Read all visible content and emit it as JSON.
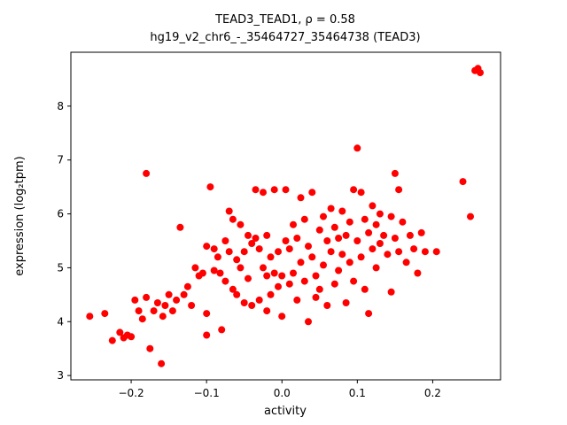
{
  "figure": {
    "background": "#ffffff"
  },
  "chart_data": {
    "type": "scatter",
    "title": "TEAD3_TEAD1, ρ = 0.58",
    "subtitle": "hg19_v2_chr6_-_35464727_35464738 (TEAD3)",
    "correlation_rho": 0.58,
    "xlabel": "activity",
    "ylabel": "expression (log₂tpm)",
    "xlim": [
      -0.28,
      0.29
    ],
    "ylim": [
      2.92,
      9.0
    ],
    "xticks": [
      -0.2,
      -0.1,
      0.0,
      0.1,
      0.2
    ],
    "xtick_labels": [
      "−0.2",
      "−0.1",
      "0.0",
      "0.1",
      "0.2"
    ],
    "yticks": [
      3,
      4,
      5,
      6,
      7,
      8
    ],
    "ytick_labels": [
      "3",
      "4",
      "5",
      "6",
      "7",
      "8"
    ],
    "grid": false,
    "legend": "none",
    "marker_color": "#ff0000",
    "marker_radius_px": 4,
    "points": [
      [
        -0.255,
        4.1
      ],
      [
        -0.235,
        4.15
      ],
      [
        -0.225,
        3.65
      ],
      [
        -0.215,
        3.8
      ],
      [
        -0.21,
        3.7
      ],
      [
        -0.205,
        3.75
      ],
      [
        -0.2,
        3.72
      ],
      [
        -0.195,
        4.4
      ],
      [
        -0.19,
        4.2
      ],
      [
        -0.185,
        4.05
      ],
      [
        -0.18,
        6.75
      ],
      [
        -0.18,
        4.45
      ],
      [
        -0.175,
        3.5
      ],
      [
        -0.17,
        4.2
      ],
      [
        -0.165,
        4.35
      ],
      [
        -0.16,
        3.22
      ],
      [
        -0.158,
        4.1
      ],
      [
        -0.155,
        4.3
      ],
      [
        -0.15,
        4.5
      ],
      [
        -0.145,
        4.2
      ],
      [
        -0.14,
        4.4
      ],
      [
        -0.135,
        5.75
      ],
      [
        -0.13,
        4.5
      ],
      [
        -0.125,
        4.65
      ],
      [
        -0.12,
        4.3
      ],
      [
        -0.115,
        5.0
      ],
      [
        -0.11,
        4.85
      ],
      [
        -0.105,
        4.9
      ],
      [
        -0.1,
        5.4
      ],
      [
        -0.1,
        4.15
      ],
      [
        -0.1,
        3.75
      ],
      [
        -0.095,
        6.5
      ],
      [
        -0.09,
        5.35
      ],
      [
        -0.09,
        4.95
      ],
      [
        -0.085,
        5.2
      ],
      [
        -0.082,
        4.9
      ],
      [
        -0.08,
        3.85
      ],
      [
        -0.075,
        5.5
      ],
      [
        -0.075,
        4.75
      ],
      [
        -0.07,
        6.05
      ],
      [
        -0.07,
        5.3
      ],
      [
        -0.065,
        5.9
      ],
      [
        -0.065,
        4.6
      ],
      [
        -0.06,
        5.15
      ],
      [
        -0.06,
        4.5
      ],
      [
        -0.055,
        5.8
      ],
      [
        -0.055,
        5.0
      ],
      [
        -0.05,
        5.3
      ],
      [
        -0.05,
        4.35
      ],
      [
        -0.045,
        5.6
      ],
      [
        -0.045,
        4.8
      ],
      [
        -0.04,
        5.45
      ],
      [
        -0.04,
        4.3
      ],
      [
        -0.035,
        6.45
      ],
      [
        -0.035,
        5.55
      ],
      [
        -0.03,
        5.35
      ],
      [
        -0.03,
        4.4
      ],
      [
        -0.025,
        6.4
      ],
      [
        -0.025,
        5.0
      ],
      [
        -0.02,
        5.6
      ],
      [
        -0.02,
        4.85
      ],
      [
        -0.02,
        4.2
      ],
      [
        -0.015,
        5.2
      ],
      [
        -0.015,
        4.5
      ],
      [
        -0.01,
        6.45
      ],
      [
        -0.01,
        4.9
      ],
      [
        -0.005,
        5.3
      ],
      [
        -0.005,
        4.65
      ],
      [
        0.0,
        4.85
      ],
      [
        0.0,
        4.1
      ],
      [
        0.005,
        6.45
      ],
      [
        0.005,
        5.5
      ],
      [
        0.01,
        5.35
      ],
      [
        0.01,
        4.7
      ],
      [
        0.015,
        5.8
      ],
      [
        0.015,
        4.9
      ],
      [
        0.02,
        5.55
      ],
      [
        0.02,
        4.4
      ],
      [
        0.025,
        6.3
      ],
      [
        0.025,
        5.1
      ],
      [
        0.03,
        5.9
      ],
      [
        0.03,
        4.75
      ],
      [
        0.035,
        5.4
      ],
      [
        0.035,
        4.0
      ],
      [
        0.04,
        6.4
      ],
      [
        0.04,
        5.2
      ],
      [
        0.045,
        4.85
      ],
      [
        0.045,
        4.45
      ],
      [
        0.05,
        5.7
      ],
      [
        0.05,
        4.6
      ],
      [
        0.055,
        5.95
      ],
      [
        0.055,
        5.05
      ],
      [
        0.06,
        5.5
      ],
      [
        0.06,
        4.3
      ],
      [
        0.065,
        6.1
      ],
      [
        0.065,
        5.3
      ],
      [
        0.07,
        5.75
      ],
      [
        0.07,
        4.7
      ],
      [
        0.075,
        5.55
      ],
      [
        0.075,
        4.95
      ],
      [
        0.08,
        6.05
      ],
      [
        0.08,
        5.25
      ],
      [
        0.085,
        5.6
      ],
      [
        0.085,
        4.35
      ],
      [
        0.09,
        5.85
      ],
      [
        0.09,
        5.1
      ],
      [
        0.095,
        6.45
      ],
      [
        0.095,
        4.75
      ],
      [
        0.1,
        7.22
      ],
      [
        0.1,
        5.5
      ],
      [
        0.105,
        6.4
      ],
      [
        0.105,
        5.2
      ],
      [
        0.11,
        5.9
      ],
      [
        0.11,
        4.6
      ],
      [
        0.115,
        5.65
      ],
      [
        0.115,
        4.15
      ],
      [
        0.12,
        6.15
      ],
      [
        0.12,
        5.35
      ],
      [
        0.125,
        5.8
      ],
      [
        0.125,
        5.0
      ],
      [
        0.13,
        6.0
      ],
      [
        0.13,
        5.45
      ],
      [
        0.135,
        5.6
      ],
      [
        0.14,
        5.25
      ],
      [
        0.145,
        5.95
      ],
      [
        0.145,
        4.55
      ],
      [
        0.15,
        6.75
      ],
      [
        0.15,
        5.55
      ],
      [
        0.155,
        6.45
      ],
      [
        0.155,
        5.3
      ],
      [
        0.16,
        5.85
      ],
      [
        0.165,
        5.1
      ],
      [
        0.17,
        5.6
      ],
      [
        0.175,
        5.35
      ],
      [
        0.18,
        4.9
      ],
      [
        0.185,
        5.65
      ],
      [
        0.19,
        5.3
      ],
      [
        0.205,
        5.3
      ],
      [
        0.24,
        6.6
      ],
      [
        0.25,
        5.95
      ],
      [
        0.26,
        8.7
      ],
      [
        0.263,
        8.62
      ],
      [
        0.256,
        8.66
      ]
    ]
  }
}
